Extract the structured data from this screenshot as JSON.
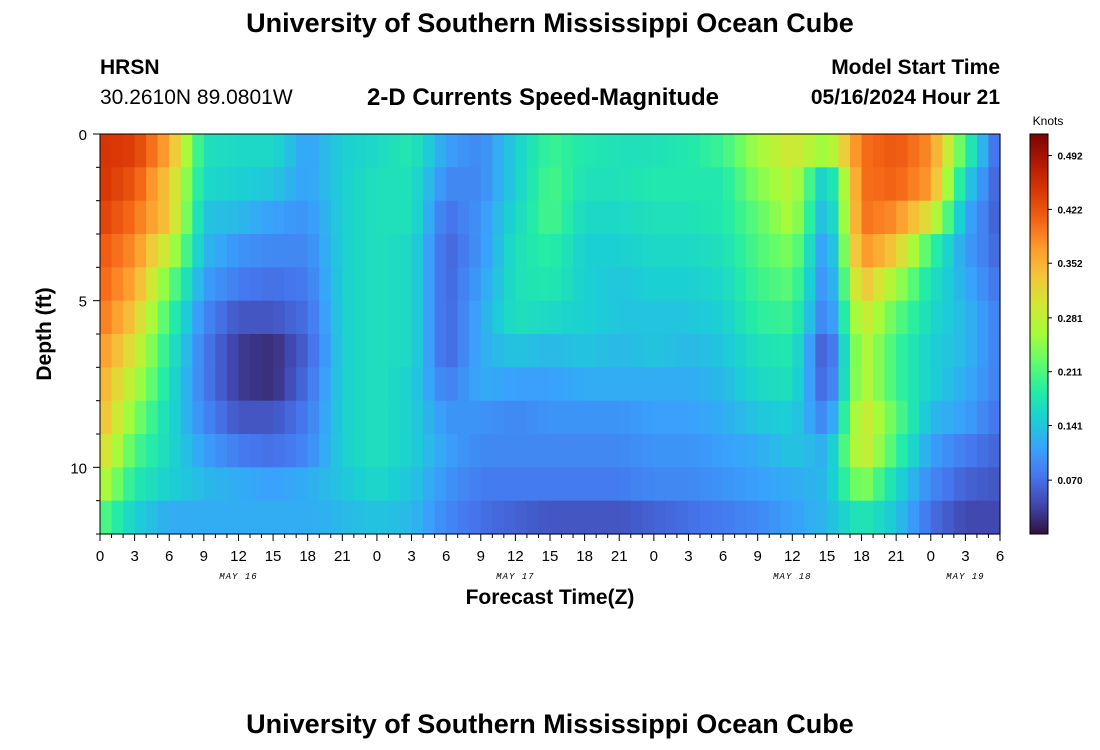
{
  "header": {
    "title": "University of Southern Mississippi Ocean Cube",
    "station": "HRSN",
    "coords": "30.2610N  89.0801W",
    "subtitle": "2-D Currents Speed-Magnitude",
    "model_start_label": "Model Start Time",
    "model_start_value": "05/16/2024 Hour 21"
  },
  "footer": {
    "title": "University of Southern Mississippi Ocean Cube"
  },
  "chart_data": {
    "type": "heatmap",
    "xlabel": "Forecast Time(Z)",
    "ylabel": "Depth (ft)",
    "x_range_hours": [
      0,
      78
    ],
    "x_tick_labels": [
      "0",
      "3",
      "6",
      "9",
      "12",
      "15",
      "18",
      "21",
      "0",
      "3",
      "6",
      "9",
      "12",
      "15",
      "18",
      "21",
      "0",
      "3",
      "6",
      "9",
      "12",
      "15",
      "18",
      "21",
      "0",
      "3",
      "6"
    ],
    "date_labels": [
      {
        "text": "MAY 16",
        "hour": 12
      },
      {
        "text": "MAY 17",
        "hour": 36
      },
      {
        "text": "MAY 18",
        "hour": 60
      },
      {
        "text": "MAY 19",
        "hour": 75
      }
    ],
    "ylim": [
      0,
      12
    ],
    "y_tick_labels": [
      0,
      5,
      10
    ],
    "colorbar": {
      "label": "Knots",
      "min": 0.0,
      "max": 0.52,
      "ticks": [
        0.492,
        0.422,
        0.352,
        0.281,
        0.211,
        0.141,
        0.07
      ],
      "colors": [
        "#30123b",
        "#4145ab",
        "#4675ed",
        "#39a2fc",
        "#1bcfd4",
        "#24eca6",
        "#61fc6c",
        "#a4fc3b",
        "#d1e834",
        "#f3c63a",
        "#fe9b2d",
        "#f36315",
        "#d93806",
        "#b11901",
        "#7a0402"
      ]
    },
    "depth_levels_ft": [
      0.5,
      1.5,
      2.5,
      3.5,
      4.5,
      5.5,
      6.5,
      7.5,
      8.5,
      9.5,
      10.5,
      11.5
    ],
    "time_hours": [
      0,
      3,
      6,
      9,
      12,
      15,
      18,
      21,
      24,
      27,
      30,
      33,
      36,
      39,
      42,
      45,
      48,
      51,
      54,
      57,
      60,
      63,
      66,
      69,
      72,
      75,
      78
    ],
    "speed_knots": [
      [
        0.45,
        0.44,
        0.36,
        0.17,
        0.16,
        0.16,
        0.11,
        0.15,
        0.16,
        0.18,
        0.11,
        0.09,
        0.15,
        0.2,
        0.18,
        0.17,
        0.17,
        0.18,
        0.2,
        0.26,
        0.3,
        0.25,
        0.4,
        0.42,
        0.38,
        0.2,
        0.05
      ],
      [
        0.45,
        0.42,
        0.33,
        0.16,
        0.15,
        0.14,
        0.11,
        0.15,
        0.17,
        0.17,
        0.09,
        0.09,
        0.15,
        0.21,
        0.17,
        0.17,
        0.18,
        0.18,
        0.18,
        0.24,
        0.28,
        0.13,
        0.4,
        0.41,
        0.37,
        0.15,
        0.05
      ],
      [
        0.44,
        0.4,
        0.33,
        0.14,
        0.13,
        0.11,
        0.1,
        0.15,
        0.17,
        0.17,
        0.07,
        0.1,
        0.16,
        0.21,
        0.16,
        0.16,
        0.17,
        0.17,
        0.18,
        0.22,
        0.27,
        0.11,
        0.4,
        0.38,
        0.3,
        0.12,
        0.05
      ],
      [
        0.42,
        0.38,
        0.28,
        0.13,
        0.1,
        0.09,
        0.09,
        0.15,
        0.17,
        0.16,
        0.06,
        0.1,
        0.17,
        0.19,
        0.15,
        0.15,
        0.16,
        0.16,
        0.17,
        0.21,
        0.24,
        0.09,
        0.38,
        0.33,
        0.2,
        0.11,
        0.06
      ],
      [
        0.41,
        0.36,
        0.23,
        0.11,
        0.08,
        0.07,
        0.08,
        0.15,
        0.17,
        0.16,
        0.06,
        0.11,
        0.17,
        0.18,
        0.15,
        0.14,
        0.15,
        0.15,
        0.16,
        0.2,
        0.22,
        0.08,
        0.34,
        0.26,
        0.17,
        0.12,
        0.07
      ],
      [
        0.4,
        0.33,
        0.2,
        0.09,
        0.05,
        0.05,
        0.07,
        0.15,
        0.17,
        0.16,
        0.06,
        0.12,
        0.17,
        0.16,
        0.15,
        0.14,
        0.14,
        0.14,
        0.15,
        0.19,
        0.2,
        0.07,
        0.3,
        0.22,
        0.16,
        0.13,
        0.08
      ],
      [
        0.38,
        0.3,
        0.18,
        0.08,
        0.03,
        0.02,
        0.06,
        0.15,
        0.17,
        0.16,
        0.06,
        0.12,
        0.14,
        0.13,
        0.14,
        0.13,
        0.14,
        0.13,
        0.14,
        0.17,
        0.18,
        0.04,
        0.28,
        0.2,
        0.15,
        0.13,
        0.08
      ],
      [
        0.36,
        0.27,
        0.17,
        0.08,
        0.03,
        0.02,
        0.07,
        0.15,
        0.17,
        0.15,
        0.08,
        0.12,
        0.11,
        0.11,
        0.12,
        0.12,
        0.12,
        0.12,
        0.13,
        0.16,
        0.17,
        0.05,
        0.28,
        0.2,
        0.15,
        0.12,
        0.08
      ],
      [
        0.35,
        0.24,
        0.16,
        0.09,
        0.05,
        0.05,
        0.08,
        0.15,
        0.17,
        0.15,
        0.1,
        0.1,
        0.09,
        0.1,
        0.1,
        0.1,
        0.11,
        0.11,
        0.12,
        0.14,
        0.15,
        0.08,
        0.3,
        0.22,
        0.13,
        0.11,
        0.07
      ],
      [
        0.32,
        0.21,
        0.16,
        0.11,
        0.08,
        0.07,
        0.09,
        0.15,
        0.17,
        0.15,
        0.11,
        0.09,
        0.09,
        0.09,
        0.09,
        0.09,
        0.1,
        0.1,
        0.11,
        0.12,
        0.14,
        0.12,
        0.3,
        0.2,
        0.11,
        0.08,
        0.06
      ],
      [
        0.28,
        0.18,
        0.15,
        0.13,
        0.12,
        0.11,
        0.12,
        0.14,
        0.16,
        0.14,
        0.1,
        0.08,
        0.08,
        0.08,
        0.08,
        0.08,
        0.09,
        0.09,
        0.1,
        0.11,
        0.12,
        0.13,
        0.25,
        0.16,
        0.09,
        0.06,
        0.05
      ],
      [
        0.22,
        0.15,
        0.12,
        0.12,
        0.12,
        0.12,
        0.12,
        0.13,
        0.14,
        0.13,
        0.09,
        0.07,
        0.06,
        0.05,
        0.05,
        0.05,
        0.06,
        0.07,
        0.08,
        0.09,
        0.11,
        0.13,
        0.18,
        0.14,
        0.07,
        0.04,
        0.04
      ]
    ]
  }
}
